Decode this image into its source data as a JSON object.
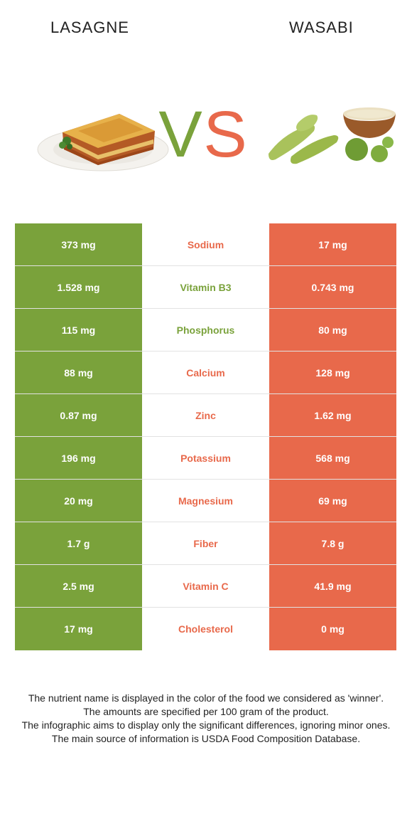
{
  "header": {
    "left_food": "LASAGNE",
    "right_food": "WASABI",
    "vs_letters": [
      "V",
      "S"
    ]
  },
  "colors": {
    "left": "#7aa23b",
    "right": "#e8694b"
  },
  "chart_data": {
    "type": "table",
    "columns": [
      "LASAGNE",
      "",
      "WASABI"
    ],
    "rows": [
      {
        "left": "373 mg",
        "nutrient": "Sodium",
        "right": "17 mg",
        "winner": "right"
      },
      {
        "left": "1.528 mg",
        "nutrient": "Vitamin B3",
        "right": "0.743 mg",
        "winner": "left"
      },
      {
        "left": "115 mg",
        "nutrient": "Phosphorus",
        "right": "80 mg",
        "winner": "left"
      },
      {
        "left": "88 mg",
        "nutrient": "Calcium",
        "right": "128 mg",
        "winner": "right"
      },
      {
        "left": "0.87 mg",
        "nutrient": "Zinc",
        "right": "1.62 mg",
        "winner": "right"
      },
      {
        "left": "196 mg",
        "nutrient": "Potassium",
        "right": "568 mg",
        "winner": "right"
      },
      {
        "left": "20 mg",
        "nutrient": "Magnesium",
        "right": "69 mg",
        "winner": "right"
      },
      {
        "left": "1.7 g",
        "nutrient": "Fiber",
        "right": "7.8 g",
        "winner": "right"
      },
      {
        "left": "2.5 mg",
        "nutrient": "Vitamin C",
        "right": "41.9 mg",
        "winner": "right"
      },
      {
        "left": "17 mg",
        "nutrient": "Cholesterol",
        "right": "0 mg",
        "winner": "right"
      }
    ]
  },
  "footnote": [
    "The nutrient name is displayed in the color of the food we considered as 'winner'.",
    "The amounts are specified per 100 gram of the product.",
    "The infographic aims to display only the significant differences, ignoring minor ones.",
    "The main source of information is USDA Food Composition Database."
  ]
}
